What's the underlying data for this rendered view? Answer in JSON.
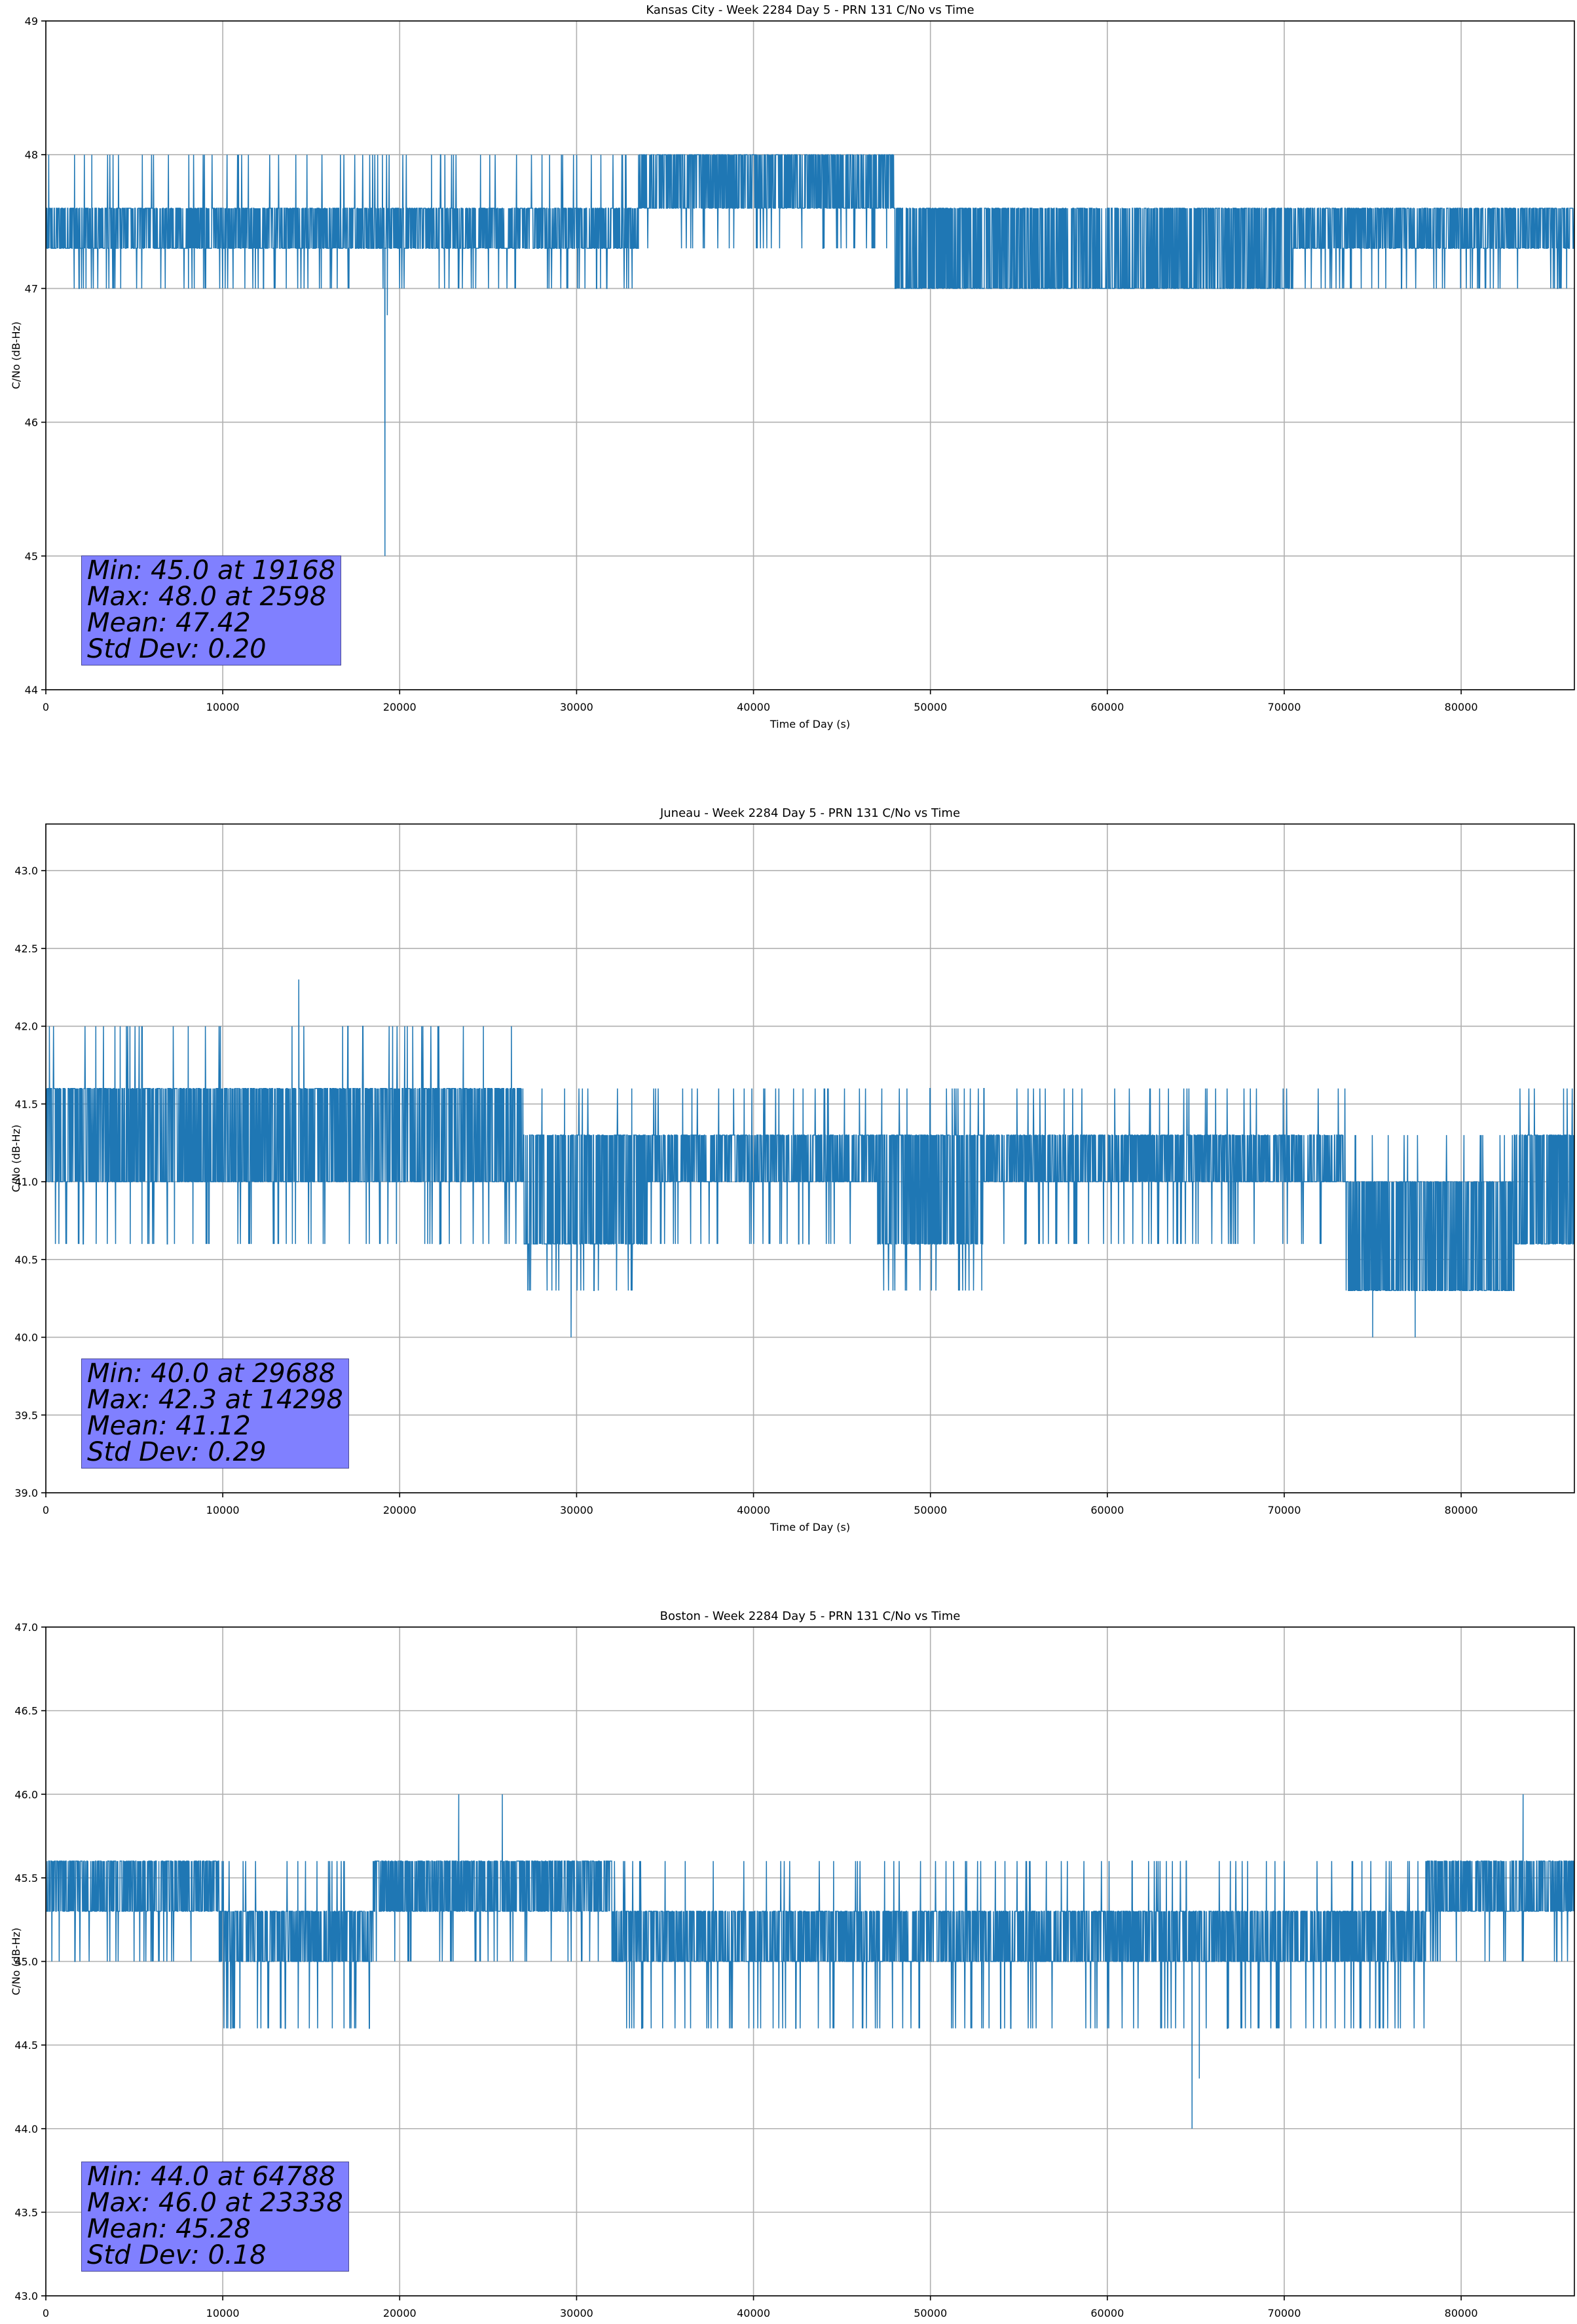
{
  "chart_data": [
    {
      "type": "line",
      "title": "Kansas City - Week 2284 Day 5 - PRN 131 C/No vs Time",
      "xlabel": "Time of Day (s)",
      "ylabel": "C/No (dB-Hz)",
      "xlim": [
        0,
        86400
      ],
      "ylim": [
        44,
        49
      ],
      "xticks": [
        "0",
        "10000",
        "20000",
        "30000",
        "40000",
        "50000",
        "60000",
        "70000",
        "80000"
      ],
      "yticks": [
        "44",
        "45",
        "46",
        "47",
        "48",
        "49"
      ],
      "grid": true,
      "series_color": "#1f77b4",
      "segments": [
        {
          "x_start": 0,
          "x_end": 33500,
          "base_low": 47.3,
          "base_high": 47.6,
          "spike_up": 48.0,
          "spike_down": 47.0
        },
        {
          "x_start": 33500,
          "x_end": 48000,
          "base_low": 47.6,
          "base_high": 48.0,
          "spike_up": 48.0,
          "spike_down": 47.3
        },
        {
          "x_start": 48000,
          "x_end": 70500,
          "base_low": 47.0,
          "base_high": 47.6,
          "spike_up": 47.6,
          "spike_down": 47.0
        },
        {
          "x_start": 70500,
          "x_end": 86400,
          "base_low": 47.3,
          "base_high": 47.6,
          "spike_up": 47.6,
          "spike_down": 47.0
        }
      ],
      "extremes": [
        {
          "x": 19168,
          "y": 45.0
        },
        {
          "x": 19300,
          "y": 46.8
        },
        {
          "x": 2598,
          "y": 48.0
        },
        {
          "x": 21800,
          "y": 48.0
        }
      ],
      "stats": {
        "min": "Min: 45.0 at 19168",
        "max": "Max: 48.0 at 2598",
        "mean": "Mean: 47.42",
        "std": "Std Dev: 0.20"
      }
    },
    {
      "type": "line",
      "title": "Juneau - Week 2284 Day 5 - PRN 131 C/No vs Time",
      "xlabel": "Time of Day (s)",
      "ylabel": "C/No (dB-Hz)",
      "xlim": [
        0,
        86400
      ],
      "ylim": [
        39.0,
        43.3
      ],
      "xticks": [
        "0",
        "10000",
        "20000",
        "30000",
        "40000",
        "50000",
        "60000",
        "70000",
        "80000"
      ],
      "yticks": [
        "39.0",
        "39.5",
        "40.0",
        "40.5",
        "41.0",
        "41.5",
        "42.0",
        "42.5",
        "43.0"
      ],
      "grid": true,
      "series_color": "#1f77b4",
      "segments": [
        {
          "x_start": 0,
          "x_end": 18000,
          "base_low": 41.0,
          "base_high": 41.6,
          "spike_up": 42.0,
          "spike_down": 40.6
        },
        {
          "x_start": 18000,
          "x_end": 27000,
          "base_low": 41.0,
          "base_high": 41.6,
          "spike_up": 42.0,
          "spike_down": 40.6
        },
        {
          "x_start": 27000,
          "x_end": 34000,
          "base_low": 40.6,
          "base_high": 41.3,
          "spike_up": 41.6,
          "spike_down": 40.3
        },
        {
          "x_start": 34000,
          "x_end": 47000,
          "base_low": 41.0,
          "base_high": 41.3,
          "spike_up": 41.6,
          "spike_down": 40.6
        },
        {
          "x_start": 47000,
          "x_end": 53000,
          "base_low": 40.6,
          "base_high": 41.3,
          "spike_up": 41.6,
          "spike_down": 40.3
        },
        {
          "x_start": 53000,
          "x_end": 73500,
          "base_low": 41.0,
          "base_high": 41.3,
          "spike_up": 41.6,
          "spike_down": 40.6
        },
        {
          "x_start": 73500,
          "x_end": 83000,
          "base_low": 40.3,
          "base_high": 41.0,
          "spike_up": 41.3,
          "spike_down": 40.3
        },
        {
          "x_start": 83000,
          "x_end": 86400,
          "base_low": 40.6,
          "base_high": 41.3,
          "spike_up": 41.6,
          "spike_down": 40.6
        }
      ],
      "extremes": [
        {
          "x": 29688,
          "y": 40.0
        },
        {
          "x": 14298,
          "y": 42.3
        },
        {
          "x": 75000,
          "y": 40.0
        },
        {
          "x": 77400,
          "y": 40.0
        },
        {
          "x": 200,
          "y": 42.0
        },
        {
          "x": 4200,
          "y": 42.0
        }
      ],
      "stats": {
        "min": "Min: 40.0 at 29688",
        "max": "Max: 42.3 at 14298",
        "mean": "Mean: 41.12",
        "std": "Std Dev: 0.29"
      }
    },
    {
      "type": "line",
      "title": "Boston - Week 2284 Day 5 - PRN 131 C/No vs Time",
      "xlabel": "Time of Day (s)",
      "ylabel": "C/No (dB-Hz)",
      "xlim": [
        0,
        86400
      ],
      "ylim": [
        43.0,
        47.0
      ],
      "xticks": [
        "0",
        "10000",
        "20000",
        "30000",
        "40000",
        "50000",
        "60000",
        "70000",
        "80000"
      ],
      "yticks": [
        "43.0",
        "43.5",
        "44.0",
        "44.5",
        "45.0",
        "45.5",
        "46.0",
        "46.5",
        "47.0"
      ],
      "grid": true,
      "series_color": "#1f77b4",
      "segments": [
        {
          "x_start": 0,
          "x_end": 9800,
          "base_low": 45.3,
          "base_high": 45.6,
          "spike_up": 45.6,
          "spike_down": 45.0
        },
        {
          "x_start": 9800,
          "x_end": 18500,
          "base_low": 45.0,
          "base_high": 45.3,
          "spike_up": 45.6,
          "spike_down": 44.6
        },
        {
          "x_start": 18500,
          "x_end": 32000,
          "base_low": 45.3,
          "base_high": 45.6,
          "spike_up": 45.6,
          "spike_down": 45.0
        },
        {
          "x_start": 32000,
          "x_end": 78000,
          "base_low": 45.0,
          "base_high": 45.3,
          "spike_up": 45.6,
          "spike_down": 44.6
        },
        {
          "x_start": 78000,
          "x_end": 86400,
          "base_low": 45.3,
          "base_high": 45.6,
          "spike_up": 45.6,
          "spike_down": 45.0
        }
      ],
      "extremes": [
        {
          "x": 64788,
          "y": 44.0
        },
        {
          "x": 65200,
          "y": 44.3
        },
        {
          "x": 23338,
          "y": 46.0
        },
        {
          "x": 25800,
          "y": 46.0
        },
        {
          "x": 83500,
          "y": 46.0
        }
      ],
      "stats": {
        "min": "Min: 44.0 at 64788",
        "max": "Max: 46.0 at 23338",
        "mean": "Mean: 45.28",
        "std": "Std Dev: 0.18"
      }
    }
  ]
}
